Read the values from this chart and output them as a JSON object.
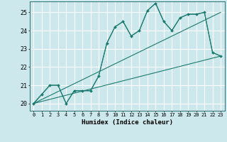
{
  "title": "",
  "xlabel": "Humidex (Indice chaleur)",
  "background_color": "#cce8ed",
  "grid_color": "#ffffff",
  "line_color": "#1a7a6e",
  "xlim": [
    -0.5,
    23.5
  ],
  "ylim": [
    19.6,
    25.6
  ],
  "yticks": [
    20,
    21,
    22,
    23,
    24,
    25
  ],
  "series": [
    {
      "x": [
        0,
        1,
        2,
        3,
        4,
        5,
        6,
        7,
        8,
        9,
        10,
        11,
        12,
        13,
        14,
        15,
        16,
        17,
        18,
        19,
        20,
        21,
        22,
        23
      ],
      "y": [
        20.0,
        20.5,
        21.0,
        21.0,
        20.0,
        20.7,
        20.7,
        20.7,
        21.5,
        23.3,
        24.2,
        24.5,
        23.7,
        24.0,
        25.1,
        25.5,
        24.5,
        24.0,
        24.7,
        24.9,
        24.9,
        25.0,
        22.8,
        22.6
      ],
      "marker": true
    },
    {
      "x": [
        0,
        1,
        2,
        3,
        4,
        5,
        6,
        7,
        8,
        9,
        10,
        11,
        12,
        13,
        14,
        15,
        16,
        17,
        18,
        19,
        20,
        21,
        22,
        23
      ],
      "y": [
        20.0,
        20.5,
        21.0,
        21.0,
        20.0,
        20.7,
        20.7,
        20.7,
        21.5,
        23.3,
        24.2,
        24.5,
        23.7,
        24.0,
        25.1,
        25.5,
        24.5,
        24.0,
        24.7,
        24.9,
        24.9,
        25.0,
        22.8,
        22.6
      ],
      "marker": false
    },
    {
      "x": [
        0,
        23
      ],
      "y": [
        20.0,
        22.6
      ],
      "marker": false
    },
    {
      "x": [
        0,
        23
      ],
      "y": [
        20.0,
        25.0
      ],
      "marker": false
    }
  ]
}
